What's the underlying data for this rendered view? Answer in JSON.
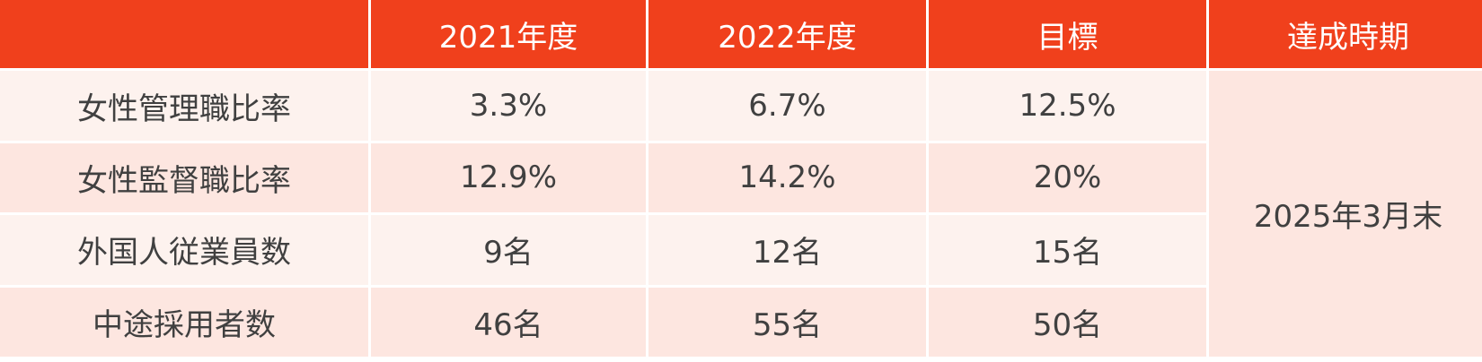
{
  "table": {
    "columns": [
      "2021年度",
      "2022年度",
      "目標",
      "達成時期"
    ],
    "rows": [
      {
        "label": "女性管理職比率",
        "values": [
          "3.3%",
          "6.7%",
          "12.5%"
        ]
      },
      {
        "label": "女性監督職比率",
        "values": [
          "12.9%",
          "14.2%",
          "20%"
        ]
      },
      {
        "label": "外国人従業員数",
        "values": [
          "9名",
          "12名",
          "15名"
        ]
      },
      {
        "label": "中途採用者数",
        "values": [
          "46名",
          "55名",
          "50名"
        ]
      }
    ],
    "achievement": "2025年3月末"
  }
}
